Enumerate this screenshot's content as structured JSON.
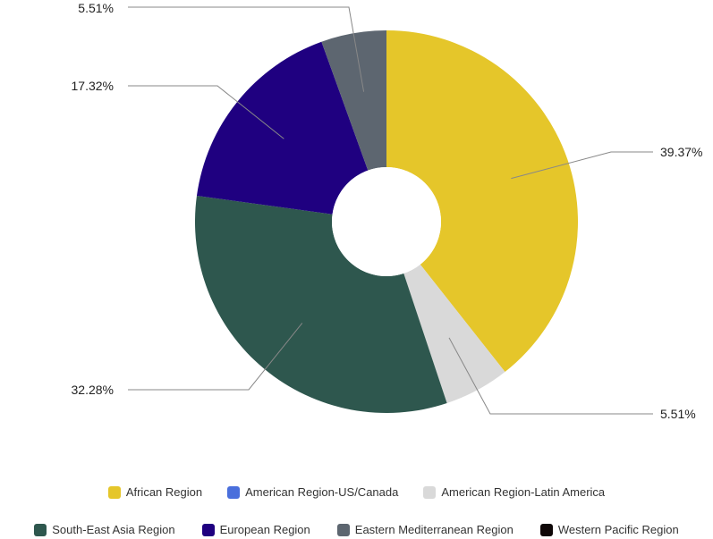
{
  "chart_data": {
    "type": "pie",
    "donut": true,
    "slices": [
      {
        "label": "African Region",
        "value": 39.37,
        "display": "39.37%",
        "color": "#e5c62a"
      },
      {
        "label": "American Region-US/Canada",
        "value": 0,
        "display": "",
        "color": "#4a6fdc"
      },
      {
        "label": "American Region-Latin America",
        "value": 5.51,
        "display": "5.51%",
        "color": "#d9d9d9"
      },
      {
        "label": "South-East Asia Region",
        "value": 32.28,
        "display": "32.28%",
        "color": "#2e574e"
      },
      {
        "label": "European Region",
        "value": 17.32,
        "display": "17.32%",
        "color": "#1f0080"
      },
      {
        "label": "Eastern Mediterranean Region",
        "value": 5.51,
        "display": "5.51%",
        "color": "#5d6670"
      },
      {
        "label": "Western Pacific Region",
        "value": 0,
        "display": "",
        "color": "#0f0808"
      }
    ],
    "legend_position": "bottom"
  }
}
